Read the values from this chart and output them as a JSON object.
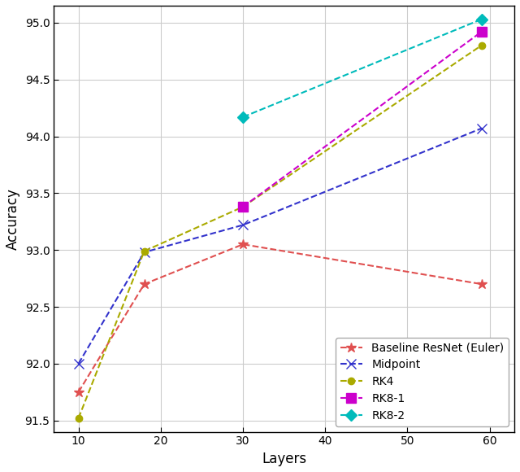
{
  "layers": [
    10,
    18,
    30,
    59
  ],
  "series": [
    {
      "label": "Baseline ResNet (Euler)",
      "values": [
        91.75,
        92.7,
        93.05,
        92.7
      ],
      "color": "#e05050",
      "marker": "*",
      "markersize": 9,
      "linestyle": "--"
    },
    {
      "label": "Midpoint",
      "values": [
        92.0,
        92.98,
        93.22,
        94.07
      ],
      "color": "#3333cc",
      "marker": "x",
      "markersize": 8,
      "linestyle": "--"
    },
    {
      "label": "RK4",
      "values": [
        91.52,
        92.99,
        93.38,
        94.8
      ],
      "color": "#aaaa00",
      "marker": "o",
      "markersize": 6,
      "linestyle": "--"
    },
    {
      "label": "RK8-1",
      "values": [
        null,
        null,
        93.38,
        94.92
      ],
      "color": "#cc00cc",
      "marker": "s",
      "markersize": 8,
      "linestyle": "--"
    },
    {
      "label": "RK8-2",
      "values": [
        null,
        null,
        94.17,
        95.03
      ],
      "color": "#00bbbb",
      "marker": "D",
      "markersize": 7,
      "linestyle": "--"
    }
  ],
  "xlabel": "Layers",
  "ylabel": "Accuracy",
  "xlim": [
    7,
    63
  ],
  "ylim": [
    91.4,
    95.15
  ],
  "xticks": [
    10,
    20,
    30,
    40,
    50,
    60
  ],
  "yticks": [
    91.5,
    92.0,
    92.5,
    93.0,
    93.5,
    94.0,
    94.5,
    95.0
  ],
  "legend_loc": "lower right",
  "plot_bg_color": "#ffffff",
  "fig_bg_color": "#ffffff",
  "grid_color": "#cccccc",
  "spine_color": "#000000"
}
